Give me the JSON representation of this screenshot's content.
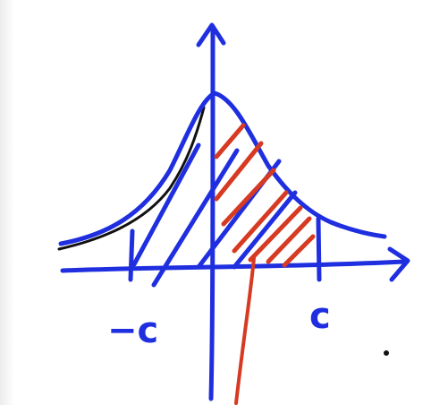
{
  "labels": {
    "left_bound": "−c",
    "right_bound": "c"
  },
  "colors": {
    "ink_blue": "#1f2fe0",
    "ink_red": "#d63a22",
    "ink_black": "#111111",
    "background": "#ffffff"
  }
}
